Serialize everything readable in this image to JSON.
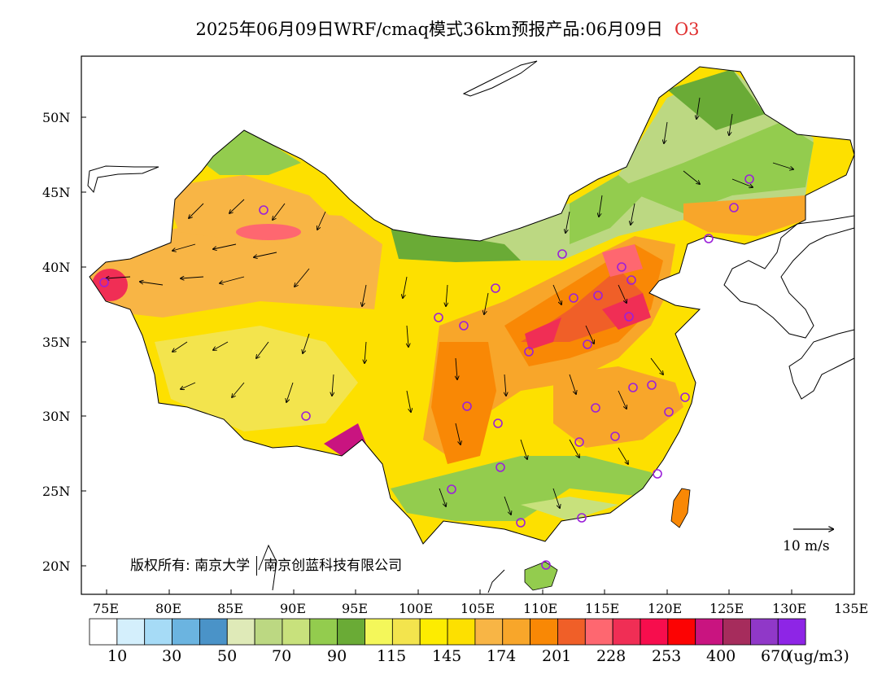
{
  "title": "2025年06月09日WRF/cmaq模式36km预报产品:06月09日",
  "species": "O3",
  "credit": {
    "left": "版权所有: 南京大学",
    "right": "南京创蓝科技有限公司"
  },
  "wind_legend": "10 m/s",
  "lat_labels": [
    "50N",
    "45N",
    "40N",
    "35N",
    "30N",
    "25N",
    "20N"
  ],
  "lon_labels": [
    "75E",
    "80E",
    "85E",
    "90E",
    "95E",
    "100E",
    "105E",
    "110E",
    "115E",
    "120E",
    "125E",
    "130E",
    "135E"
  ],
  "colorbar": {
    "colors": [
      "#ffffff",
      "#d4effc",
      "#a6dbf6",
      "#6bb4e0",
      "#4a93c8",
      "#dfeab8",
      "#bcd882",
      "#c8e17c",
      "#93cc4e",
      "#6aab36",
      "#f4f75a",
      "#f3e44d",
      "#fdec00",
      "#fde000",
      "#f8b545",
      "#f8a62a",
      "#f98805",
      "#f05f28",
      "#fe6770",
      "#f02e55",
      "#f70d4d",
      "#fc0303",
      "#c91480",
      "#a62c5c",
      "#9038c8",
      "#8e25e6"
    ],
    "labels": [
      "10",
      "30",
      "50",
      "70",
      "90",
      "115",
      "145",
      "174",
      "201",
      "228",
      "253",
      "400",
      "670"
    ],
    "unit": "(ug/m3)"
  }
}
